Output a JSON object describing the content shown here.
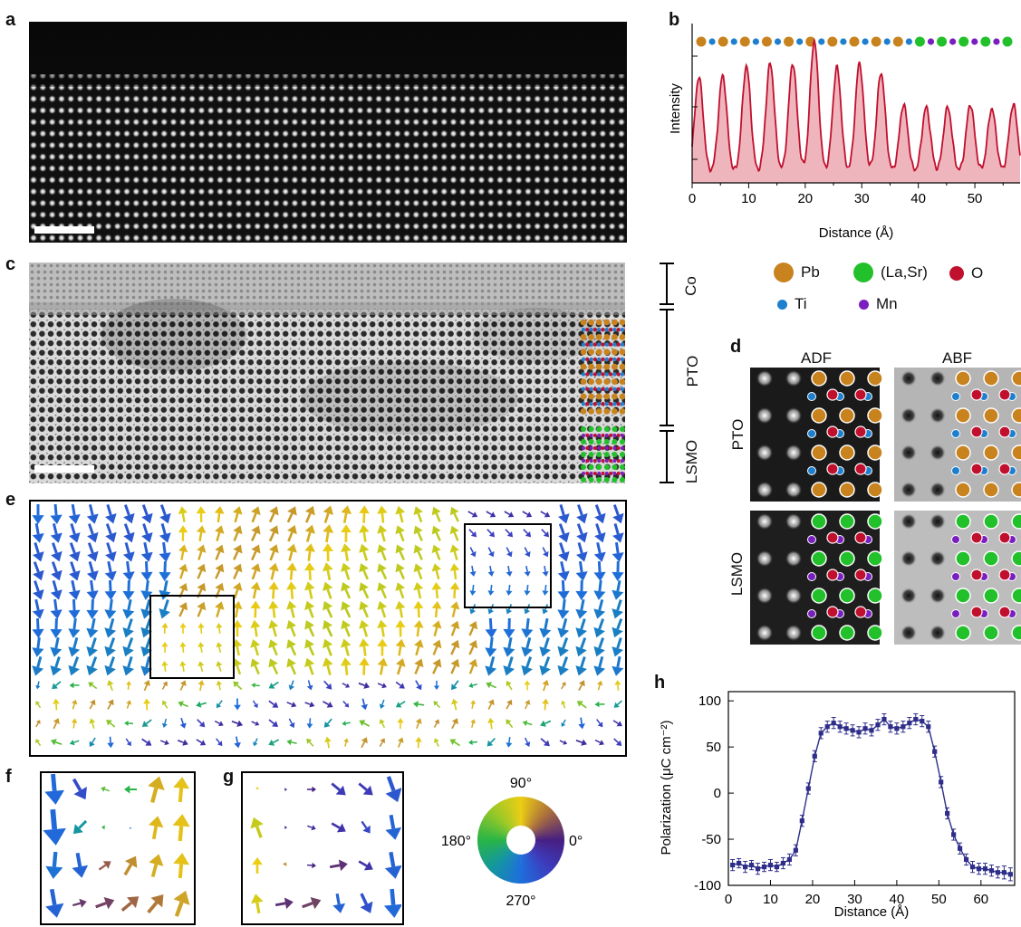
{
  "panels": {
    "a": "a",
    "b": "b",
    "c": "c",
    "d": "d",
    "e": "e",
    "f": "f",
    "g": "g",
    "h": "h"
  },
  "colors": {
    "Pb": "#c8821e",
    "LaSr": "#22c02a",
    "O": "#c0102e",
    "Ti": "#1e7fcf",
    "Mn": "#7a1fbf",
    "profile": "#c0102e",
    "profile_fill": "#efb5bd",
    "polarization": "#2e2e8a"
  },
  "legend": {
    "items": [
      {
        "key": "Pb",
        "label": "Pb"
      },
      {
        "key": "LaSr",
        "label": "(La,Sr)"
      },
      {
        "key": "O",
        "label": "O"
      },
      {
        "key": "Ti",
        "label": "Ti"
      },
      {
        "key": "Mn",
        "label": "Mn"
      }
    ]
  },
  "layers": {
    "co": "Co",
    "pto": "PTO",
    "lsmo": "LSMO"
  },
  "panel_d": {
    "col_adf": "ADF",
    "col_abf": "ABF",
    "row_pto": "PTO",
    "row_lsmo": "LSMO"
  },
  "colorwheel": {
    "label_90": "90°",
    "label_180": "180°",
    "label_0": "0°",
    "label_270": "270°"
  },
  "chart_data": [
    {
      "type": "area",
      "panel": "b",
      "xlabel": "Distance (Å)",
      "ylabel": "Intensity",
      "xlim": [
        0,
        58
      ],
      "xticks": [
        0,
        10,
        20,
        30,
        40,
        50
      ],
      "atom_sequence": [
        "Pb",
        "Ti",
        "Pb",
        "Ti",
        "Pb",
        "Ti",
        "Pb",
        "Ti",
        "Pb",
        "Ti",
        "Pb",
        "Ti",
        "Pb",
        "Ti",
        "Pb",
        "Ti",
        "Pb",
        "Ti",
        "Pb",
        "Ti",
        "LaSr",
        "Mn",
        "LaSr",
        "Mn",
        "LaSr",
        "Mn",
        "LaSr",
        "Mn",
        "LaSr"
      ],
      "peaks": [
        {
          "x": 1.2,
          "h": 0.7
        },
        {
          "x": 5.4,
          "h": 0.71
        },
        {
          "x": 9.6,
          "h": 0.78
        },
        {
          "x": 13.8,
          "h": 0.8
        },
        {
          "x": 17.8,
          "h": 0.8
        },
        {
          "x": 21.6,
          "h": 0.96
        },
        {
          "x": 25.6,
          "h": 0.77
        },
        {
          "x": 29.6,
          "h": 0.8
        },
        {
          "x": 33.4,
          "h": 0.73
        },
        {
          "x": 37.4,
          "h": 0.5
        },
        {
          "x": 41.4,
          "h": 0.48
        },
        {
          "x": 45.2,
          "h": 0.48
        },
        {
          "x": 49.2,
          "h": 0.5
        },
        {
          "x": 53.0,
          "h": 0.47
        },
        {
          "x": 56.8,
          "h": 0.5
        }
      ]
    },
    {
      "type": "line",
      "panel": "h",
      "xlabel": "Distance (Å)",
      "ylabel": "Polarization (μC cm⁻²)",
      "xlim": [
        0,
        68
      ],
      "ylim": [
        -100,
        110
      ],
      "xticks": [
        0,
        10,
        20,
        30,
        40,
        50,
        60
      ],
      "yticks": [
        -100,
        -50,
        0,
        50,
        100
      ],
      "x": [
        1,
        2.5,
        4,
        5.5,
        7,
        8.5,
        10,
        11.5,
        13,
        14.5,
        16,
        17.5,
        19,
        20.5,
        22,
        23.5,
        25,
        26.5,
        28,
        29.5,
        31,
        32.5,
        34,
        35.5,
        37,
        38.5,
        40,
        41.5,
        43,
        44.5,
        46,
        47.5,
        49,
        50.5,
        52,
        53.5,
        55,
        56.5,
        58,
        59.5,
        61,
        62.5,
        64,
        65.5,
        67
      ],
      "y": [
        -78,
        -76,
        -80,
        -78,
        -82,
        -80,
        -78,
        -80,
        -76,
        -72,
        -62,
        -30,
        5,
        40,
        65,
        72,
        76,
        72,
        70,
        68,
        66,
        70,
        68,
        74,
        80,
        72,
        70,
        72,
        76,
        80,
        78,
        72,
        45,
        12,
        -22,
        -45,
        -60,
        -72,
        -80,
        -82,
        -82,
        -84,
        -86,
        -86,
        -88
      ],
      "err": [
        6,
        5,
        6,
        5,
        6,
        5,
        6,
        5,
        6,
        6,
        6,
        6,
        6,
        6,
        6,
        6,
        6,
        6,
        6,
        6,
        6,
        6,
        6,
        6,
        6,
        6,
        6,
        6,
        6,
        6,
        6,
        6,
        6,
        6,
        6,
        6,
        6,
        6,
        6,
        6,
        6,
        6,
        6,
        7,
        7
      ]
    }
  ]
}
